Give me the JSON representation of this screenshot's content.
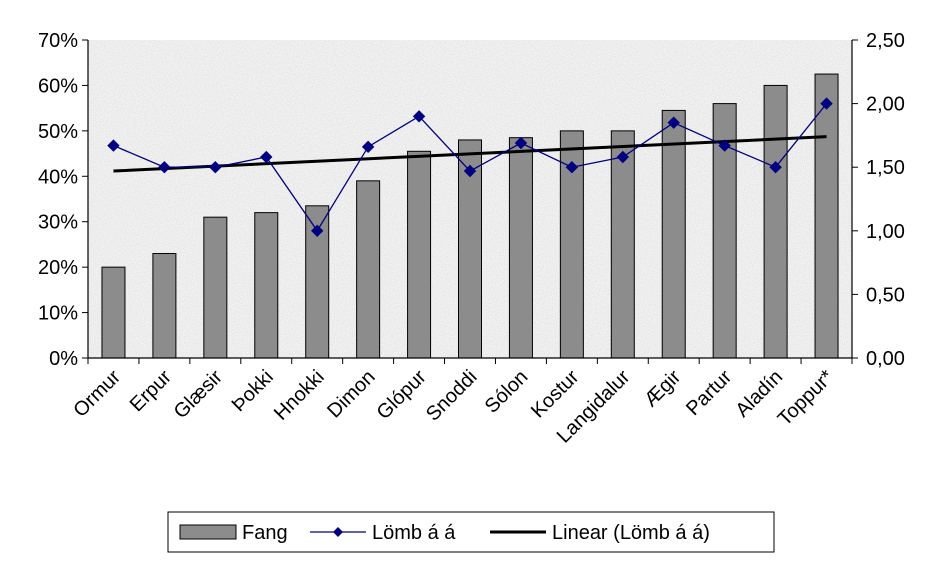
{
  "chart_data": {
    "type": "bar",
    "categories": [
      "Ormur",
      "Erpur",
      "Glæsir",
      "Þokki",
      "Hnokki",
      "Dimon",
      "Glópur",
      "Snoddi",
      "Sólon",
      "Kostur",
      "Langidalur",
      "Ægir",
      "Partur",
      "Aladín",
      "Toppur*"
    ],
    "series": [
      {
        "name": "Fang",
        "type": "bar",
        "axis": "left",
        "color": "#8c8c8c",
        "values": [
          0.2,
          0.23,
          0.31,
          0.32,
          0.335,
          0.39,
          0.455,
          0.48,
          0.485,
          0.5,
          0.5,
          0.545,
          0.56,
          0.6,
          0.625
        ]
      },
      {
        "name": "Lömb á á",
        "type": "line",
        "axis": "right",
        "color": "#000080",
        "values": [
          1.67,
          1.5,
          1.5,
          1.58,
          1.0,
          1.66,
          1.9,
          1.47,
          1.69,
          1.5,
          1.58,
          1.85,
          1.67,
          1.5,
          2.0
        ]
      },
      {
        "name": "Linear (Lömb á á)",
        "type": "trendline",
        "axis": "right",
        "color": "#000000",
        "values": [
          1.47,
          1.489,
          1.508,
          1.527,
          1.546,
          1.565,
          1.584,
          1.603,
          1.622,
          1.641,
          1.66,
          1.679,
          1.698,
          1.717,
          1.74
        ]
      }
    ],
    "left_axis": {
      "min": 0,
      "max": 0.7,
      "step": 0.1,
      "tick_labels": [
        "0%",
        "10%",
        "20%",
        "30%",
        "40%",
        "50%",
        "60%",
        "70%"
      ]
    },
    "right_axis": {
      "min": 0,
      "max": 2.5,
      "step": 0.5,
      "tick_labels": [
        "0,00",
        "0,50",
        "1,00",
        "1,50",
        "2,00",
        "2,50"
      ]
    },
    "grid": false,
    "legend_position": "bottom",
    "legend_labels": [
      "Fang",
      "Lömb á á",
      "Linear (Lömb á á)"
    ]
  }
}
